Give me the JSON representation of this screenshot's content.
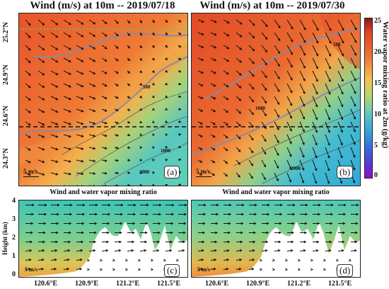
{
  "panels_top": [
    {
      "title": "Wind (m/s) at 10m -- 2019/07/18",
      "label": "(a)"
    },
    {
      "title": "Wind (m/s) at 10m -- 2019/07/30",
      "label": "(b)"
    }
  ],
  "panels_bottom": [
    {
      "title": "Wind and water vapor mixing ratio",
      "label": "(c)"
    },
    {
      "title": "Wind and water vapor mixing ratio",
      "label": "(d)"
    }
  ],
  "lat_ticks": [
    "25.2°N",
    "24.9°N",
    "24.6°N",
    "24.3°N"
  ],
  "lon_ticks": [
    "120.6°E",
    "120.9°E",
    "121.2°E",
    "121.5°E"
  ],
  "height_ticks": [
    "4",
    "3",
    "2",
    "1",
    "0"
  ],
  "height_axis_label": "Height (km)",
  "reference_vector_label": "5 m/s",
  "contour_labels": [
    "500",
    "1000",
    "2000",
    "3000"
  ],
  "colorbar": {
    "title": "Water vapor mixing ratio at 2m (g/kg)",
    "ticks": [
      "25",
      "20",
      "15",
      "10",
      "5",
      "0"
    ]
  },
  "colors": {
    "high": "#e8542a",
    "mid": "#f0a847",
    "low": "#5ec9c0",
    "deep": "#2ea8d8"
  }
}
